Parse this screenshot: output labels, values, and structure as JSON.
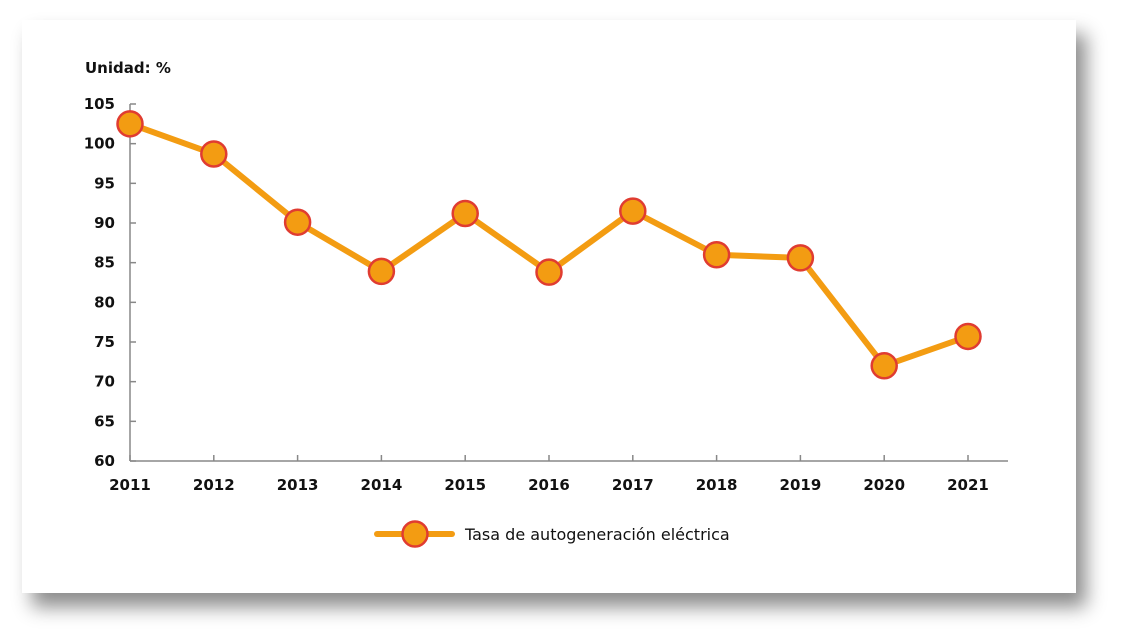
{
  "chart_data": {
    "type": "line",
    "unit_label": "Unidad: %",
    "x": [
      "2011",
      "2012",
      "2013",
      "2014",
      "2015",
      "2016",
      "2017",
      "2018",
      "2019",
      "2020",
      "2021"
    ],
    "series": [
      {
        "name": "Tasa de autogeneración eléctrica",
        "values": [
          102.5,
          98.7,
          90.1,
          83.9,
          91.2,
          83.8,
          91.5,
          86.0,
          85.6,
          72.0,
          75.7
        ]
      }
    ],
    "ylim": [
      60,
      105
    ],
    "yticks": [
      60,
      65,
      70,
      75,
      80,
      85,
      90,
      95,
      100,
      105
    ],
    "grid": false,
    "legend_position": "bottom-center",
    "colors": {
      "line": "#F39C12",
      "marker_fill": "#F39C12",
      "marker_stroke": "#E03C31",
      "axis": "#888888"
    }
  }
}
